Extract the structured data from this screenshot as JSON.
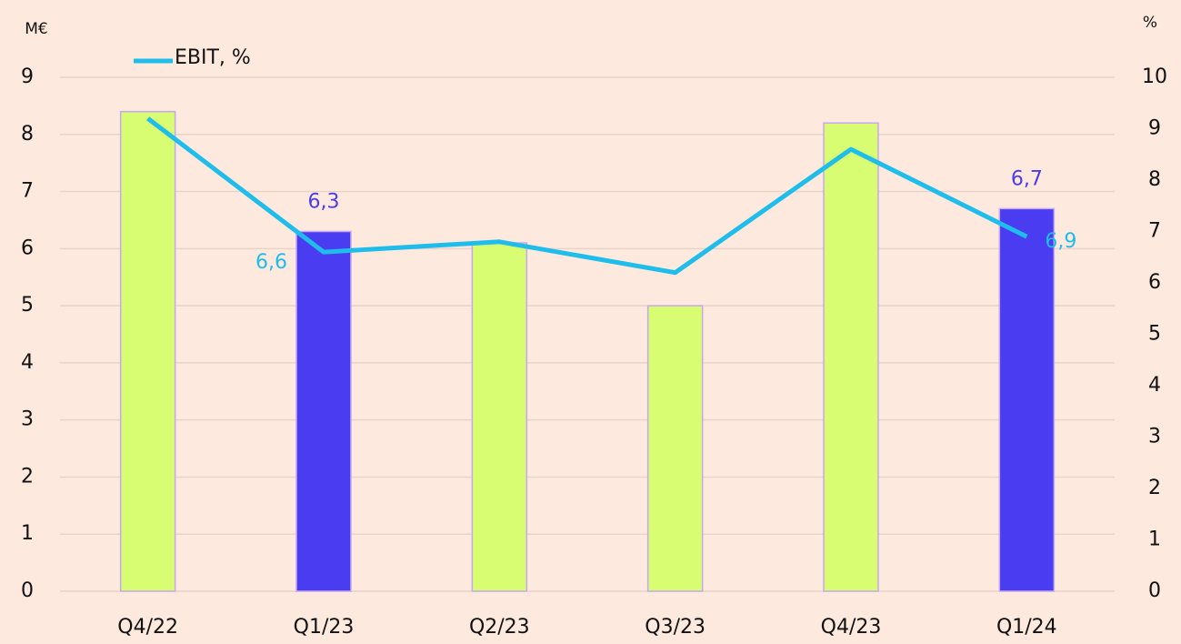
{
  "chart_data": {
    "type": "bar-line",
    "ylabel": "M€",
    "y2label": "%",
    "categories": [
      "Q4/22",
      "Q1/23",
      "Q2/23",
      "Q3/23",
      "Q4/23",
      "Q1/24"
    ],
    "series": [
      {
        "type": "bar",
        "colors": [
          "#d8fc72",
          "#4a3cf0",
          "#d8fc72",
          "#d8fc72",
          "#d8fc72",
          "#4a3cf0"
        ],
        "color": "#4a3cf0",
        "values": [
          8.4,
          6.3,
          6.1,
          5.0,
          8.2,
          6.7
        ],
        "value_labels": [
          null,
          "6,3",
          null,
          null,
          null,
          "6,7"
        ]
      },
      {
        "type": "line",
        "name": "EBIT, %",
        "color": "#1ebdec",
        "axis": "y2",
        "values": [
          9.2,
          6.6,
          6.8,
          6.2,
          8.6,
          6.9
        ],
        "value_labels": [
          null,
          "6,6",
          null,
          null,
          null,
          "6,9"
        ]
      }
    ],
    "ylim": [
      0,
      9
    ],
    "yticks": [
      0,
      1,
      2,
      3,
      4,
      5,
      6,
      7,
      8,
      9
    ],
    "y2lim": [
      0,
      10
    ],
    "y2ticks": [
      0,
      1,
      2,
      3,
      4,
      5,
      6,
      7,
      8,
      9,
      10
    ],
    "grid": true,
    "legend": "top-left"
  }
}
